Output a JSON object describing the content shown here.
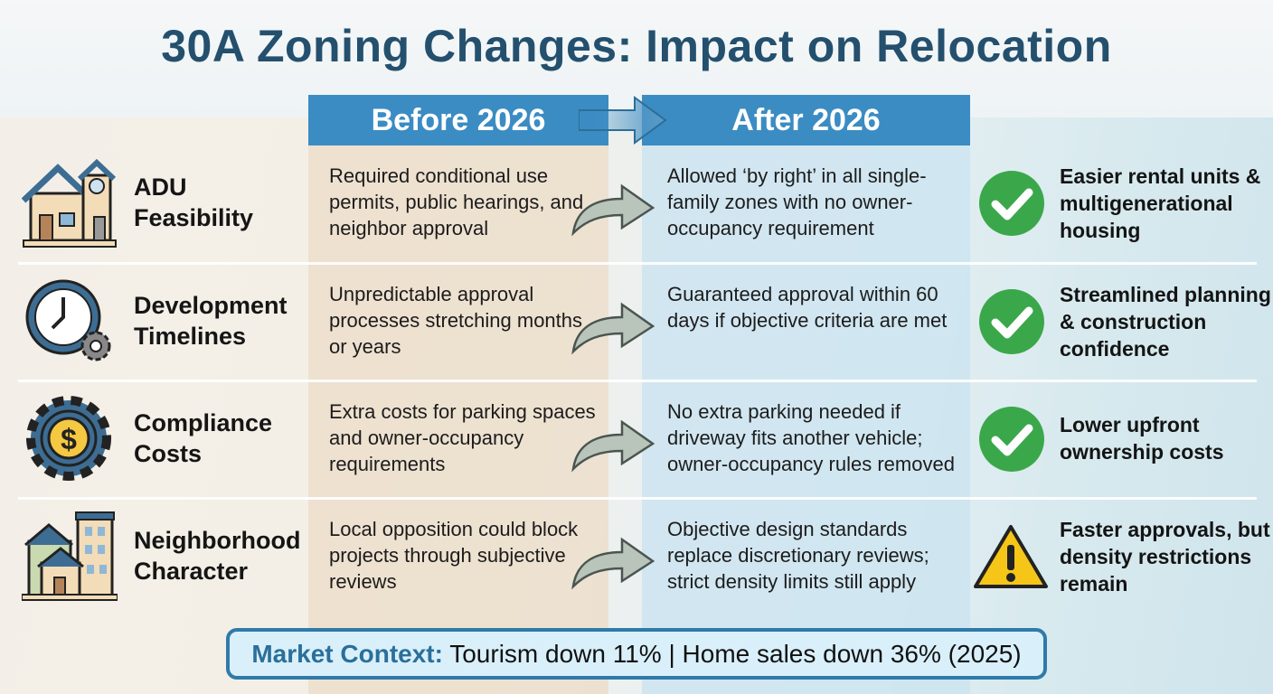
{
  "title": "30A Zoning Changes: Impact on Relocation",
  "columns": {
    "before": "Before 2026",
    "after": "After 2026"
  },
  "rows": [
    {
      "label1": "ADU",
      "label2": "Feasibility",
      "icon": "house-icon",
      "before": "Required conditional use permits, public hearings, and neighbor approval",
      "after": "Allowed ‘by right’ in all single-family zones with no owner-occupancy requirement",
      "result": "Easier rental units & multigenerational housing",
      "status": "check"
    },
    {
      "label1": "Development",
      "label2": "Timelines",
      "icon": "clock-gear-icon",
      "before": "Unpredictable approval processes stretching months or years",
      "after": "Guaranteed approval within 60 days if objective criteria are met",
      "result": "Streamlined planning & construction confidence",
      "status": "check"
    },
    {
      "label1": "Compliance",
      "label2": "Costs",
      "icon": "dollar-gear-icon",
      "before": "Extra costs for parking spaces and owner-occupancy requirements",
      "after": "No extra parking needed if driveway fits another vehicle; owner-occupancy rules removed",
      "result": "Lower upfront ownership costs",
      "status": "check"
    },
    {
      "label1": "Neighborhood",
      "label2": "Character",
      "icon": "buildings-icon",
      "before": "Local opposition could block projects through subjective reviews",
      "after": "Objective design standards replace discretionary reviews; strict density limits still apply",
      "result": "Faster approvals, but density restrictions remain",
      "status": "warning"
    }
  ],
  "footer": {
    "label": "Market Context:",
    "text": " Tourism down 11% | Home sales down 36% (2025)"
  },
  "colors": {
    "title": "#24506e",
    "header": "#3b8cc3",
    "check": "#3aa84a",
    "warning": "#f5c518"
  }
}
